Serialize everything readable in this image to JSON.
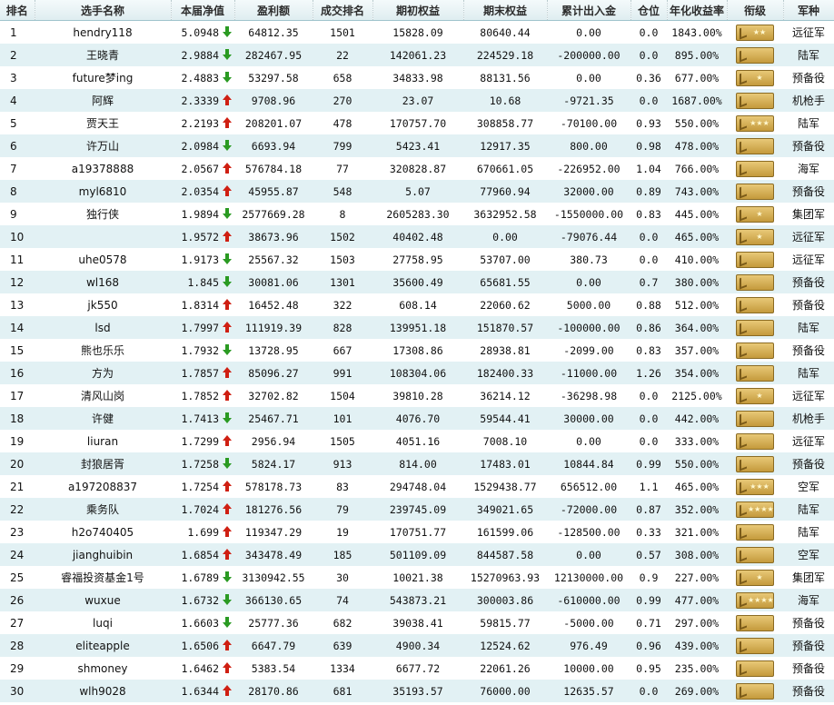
{
  "headers": [
    "排名",
    "选手名称",
    "本届净值",
    "盈利额",
    "成交排名",
    "期初权益",
    "期末权益",
    "累计出入金",
    "仓位",
    "年化收益率",
    "衔级",
    "军种"
  ],
  "rows": [
    {
      "rank": "1",
      "name": "hendry118",
      "nav": "5.0948",
      "dir": "down",
      "profit": "64812.35",
      "trade_rank": "1501",
      "start": "15828.09",
      "end": "80640.44",
      "flow": "0.00",
      "position": "0.0",
      "annual": "1843.00%",
      "stars": 2,
      "army": "远征军"
    },
    {
      "rank": "2",
      "name": "王晓青",
      "nav": "2.9884",
      "dir": "down",
      "profit": "282467.95",
      "trade_rank": "22",
      "start": "142061.23",
      "end": "224529.18",
      "flow": "-200000.00",
      "position": "0.0",
      "annual": "895.00%",
      "stars": 0,
      "army": "陆军"
    },
    {
      "rank": "3",
      "name": "future梦ing",
      "nav": "2.4883",
      "dir": "down",
      "profit": "53297.58",
      "trade_rank": "658",
      "start": "34833.98",
      "end": "88131.56",
      "flow": "0.00",
      "position": "0.36",
      "annual": "677.00%",
      "stars": 1,
      "army": "预备役"
    },
    {
      "rank": "4",
      "name": "阿辉",
      "nav": "2.3339",
      "dir": "up",
      "profit": "9708.96",
      "trade_rank": "270",
      "start": "23.07",
      "end": "10.68",
      "flow": "-9721.35",
      "position": "0.0",
      "annual": "1687.00%",
      "stars": 0,
      "army": "机枪手"
    },
    {
      "rank": "5",
      "name": "贾天王",
      "nav": "2.2193",
      "dir": "up",
      "profit": "208201.07",
      "trade_rank": "478",
      "start": "170757.70",
      "end": "308858.77",
      "flow": "-70100.00",
      "position": "0.93",
      "annual": "550.00%",
      "stars": 3,
      "army": "陆军"
    },
    {
      "rank": "6",
      "name": "许万山",
      "nav": "2.0984",
      "dir": "down",
      "profit": "6693.94",
      "trade_rank": "799",
      "start": "5423.41",
      "end": "12917.35",
      "flow": "800.00",
      "position": "0.98",
      "annual": "478.00%",
      "stars": 0,
      "army": "预备役"
    },
    {
      "rank": "7",
      "name": "a19378888",
      "nav": "2.0567",
      "dir": "up",
      "profit": "576784.18",
      "trade_rank": "77",
      "start": "320828.87",
      "end": "670661.05",
      "flow": "-226952.00",
      "position": "1.04",
      "annual": "766.00%",
      "stars": 0,
      "army": "海军"
    },
    {
      "rank": "8",
      "name": "myl6810",
      "nav": "2.0354",
      "dir": "up",
      "profit": "45955.87",
      "trade_rank": "548",
      "start": "5.07",
      "end": "77960.94",
      "flow": "32000.00",
      "position": "0.89",
      "annual": "743.00%",
      "stars": 0,
      "army": "预备役"
    },
    {
      "rank": "9",
      "name": "独行侠",
      "nav": "1.9894",
      "dir": "down",
      "profit": "2577669.28",
      "trade_rank": "8",
      "start": "2605283.30",
      "end": "3632952.58",
      "flow": "-1550000.00",
      "position": "0.83",
      "annual": "445.00%",
      "stars": 1,
      "army": "集团军"
    },
    {
      "rank": "10",
      "name": "",
      "nav": "1.9572",
      "dir": "up",
      "profit": "38673.96",
      "trade_rank": "1502",
      "start": "40402.48",
      "end": "0.00",
      "flow": "-79076.44",
      "position": "0.0",
      "annual": "465.00%",
      "stars": 1,
      "army": "远征军"
    },
    {
      "rank": "11",
      "name": "uhe0578",
      "nav": "1.9173",
      "dir": "down",
      "profit": "25567.32",
      "trade_rank": "1503",
      "start": "27758.95",
      "end": "53707.00",
      "flow": "380.73",
      "position": "0.0",
      "annual": "410.00%",
      "stars": 0,
      "army": "远征军"
    },
    {
      "rank": "12",
      "name": "wl168",
      "nav": "1.845",
      "dir": "down",
      "profit": "30081.06",
      "trade_rank": "1301",
      "start": "35600.49",
      "end": "65681.55",
      "flow": "0.00",
      "position": "0.7",
      "annual": "380.00%",
      "stars": 0,
      "army": "预备役"
    },
    {
      "rank": "13",
      "name": "jk550",
      "nav": "1.8314",
      "dir": "up",
      "profit": "16452.48",
      "trade_rank": "322",
      "start": "608.14",
      "end": "22060.62",
      "flow": "5000.00",
      "position": "0.88",
      "annual": "512.00%",
      "stars": 0,
      "army": "预备役"
    },
    {
      "rank": "14",
      "name": "lsd",
      "nav": "1.7997",
      "dir": "up",
      "profit": "111919.39",
      "trade_rank": "828",
      "start": "139951.18",
      "end": "151870.57",
      "flow": "-100000.00",
      "position": "0.86",
      "annual": "364.00%",
      "stars": 0,
      "army": "陆军"
    },
    {
      "rank": "15",
      "name": "熊也乐乐",
      "nav": "1.7932",
      "dir": "down",
      "profit": "13728.95",
      "trade_rank": "667",
      "start": "17308.86",
      "end": "28938.81",
      "flow": "-2099.00",
      "position": "0.83",
      "annual": "357.00%",
      "stars": 0,
      "army": "预备役"
    },
    {
      "rank": "16",
      "name": "方为",
      "nav": "1.7857",
      "dir": "up",
      "profit": "85096.27",
      "trade_rank": "991",
      "start": "108304.06",
      "end": "182400.33",
      "flow": "-11000.00",
      "position": "1.26",
      "annual": "354.00%",
      "stars": 0,
      "army": "陆军"
    },
    {
      "rank": "17",
      "name": "清风山岗",
      "nav": "1.7852",
      "dir": "up",
      "profit": "32702.82",
      "trade_rank": "1504",
      "start": "39810.28",
      "end": "36214.12",
      "flow": "-36298.98",
      "position": "0.0",
      "annual": "2125.00%",
      "stars": 1,
      "army": "远征军"
    },
    {
      "rank": "18",
      "name": "许健",
      "nav": "1.7413",
      "dir": "down",
      "profit": "25467.71",
      "trade_rank": "101",
      "start": "4076.70",
      "end": "59544.41",
      "flow": "30000.00",
      "position": "0.0",
      "annual": "442.00%",
      "stars": 0,
      "army": "机枪手"
    },
    {
      "rank": "19",
      "name": "liuran",
      "nav": "1.7299",
      "dir": "up",
      "profit": "2956.94",
      "trade_rank": "1505",
      "start": "4051.16",
      "end": "7008.10",
      "flow": "0.00",
      "position": "0.0",
      "annual": "333.00%",
      "stars": 0,
      "army": "远征军"
    },
    {
      "rank": "20",
      "name": "封狼居胥",
      "nav": "1.7258",
      "dir": "down",
      "profit": "5824.17",
      "trade_rank": "913",
      "start": "814.00",
      "end": "17483.01",
      "flow": "10844.84",
      "position": "0.99",
      "annual": "550.00%",
      "stars": 0,
      "army": "预备役"
    },
    {
      "rank": "21",
      "name": "a197208837",
      "nav": "1.7254",
      "dir": "up",
      "profit": "578178.73",
      "trade_rank": "83",
      "start": "294748.04",
      "end": "1529438.77",
      "flow": "656512.00",
      "position": "1.1",
      "annual": "465.00%",
      "stars": 3,
      "army": "空军"
    },
    {
      "rank": "22",
      "name": "乘务队",
      "nav": "1.7024",
      "dir": "up",
      "profit": "181276.56",
      "trade_rank": "79",
      "start": "239745.09",
      "end": "349021.65",
      "flow": "-72000.00",
      "position": "0.87",
      "annual": "352.00%",
      "stars": 4,
      "army": "陆军"
    },
    {
      "rank": "23",
      "name": "h2o740405",
      "nav": "1.699",
      "dir": "up",
      "profit": "119347.29",
      "trade_rank": "19",
      "start": "170751.77",
      "end": "161599.06",
      "flow": "-128500.00",
      "position": "0.33",
      "annual": "321.00%",
      "stars": 0,
      "army": "陆军"
    },
    {
      "rank": "24",
      "name": "jianghuibin",
      "nav": "1.6854",
      "dir": "up",
      "profit": "343478.49",
      "trade_rank": "185",
      "start": "501109.09",
      "end": "844587.58",
      "flow": "0.00",
      "position": "0.57",
      "annual": "308.00%",
      "stars": 0,
      "army": "空军"
    },
    {
      "rank": "25",
      "name": "睿福投资基金1号",
      "nav": "1.6789",
      "dir": "down",
      "profit": "3130942.55",
      "trade_rank": "30",
      "start": "10021.38",
      "end": "15270963.93",
      "flow": "12130000.00",
      "position": "0.9",
      "annual": "227.00%",
      "stars": 1,
      "army": "集团军"
    },
    {
      "rank": "26",
      "name": "wuxue",
      "nav": "1.6732",
      "dir": "down",
      "profit": "366130.65",
      "trade_rank": "74",
      "start": "543873.21",
      "end": "300003.86",
      "flow": "-610000.00",
      "position": "0.99",
      "annual": "477.00%",
      "stars": 4,
      "army": "海军"
    },
    {
      "rank": "27",
      "name": "luqi",
      "nav": "1.6603",
      "dir": "down",
      "profit": "25777.36",
      "trade_rank": "682",
      "start": "39038.41",
      "end": "59815.77",
      "flow": "-5000.00",
      "position": "0.71",
      "annual": "297.00%",
      "stars": 0,
      "army": "预备役"
    },
    {
      "rank": "28",
      "name": "eliteapple",
      "nav": "1.6506",
      "dir": "up",
      "profit": "6647.79",
      "trade_rank": "639",
      "start": "4900.34",
      "end": "12524.62",
      "flow": "976.49",
      "position": "0.96",
      "annual": "439.00%",
      "stars": 0,
      "army": "预备役"
    },
    {
      "rank": "29",
      "name": "shmoney",
      "nav": "1.6462",
      "dir": "up",
      "profit": "5383.54",
      "trade_rank": "1334",
      "start": "6677.72",
      "end": "22061.26",
      "flow": "10000.00",
      "position": "0.95",
      "annual": "235.00%",
      "stars": 0,
      "army": "预备役"
    },
    {
      "rank": "30",
      "name": "wlh9028",
      "nav": "1.6344",
      "dir": "up",
      "profit": "28170.86",
      "trade_rank": "681",
      "start": "35193.57",
      "end": "76000.00",
      "flow": "12635.57",
      "position": "0.0",
      "annual": "269.00%",
      "stars": 0,
      "army": "预备役"
    }
  ]
}
